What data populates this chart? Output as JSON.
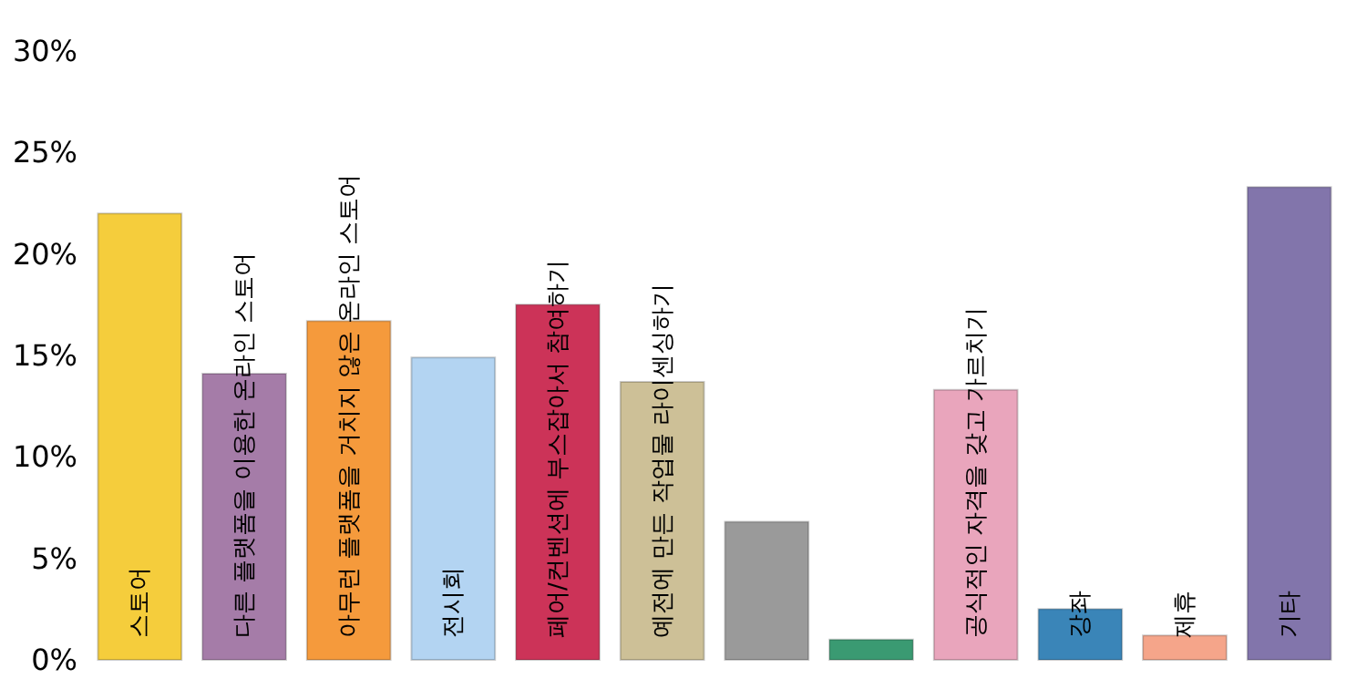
{
  "chart_data": {
    "type": "bar",
    "categories": [
      "스토어",
      "다른 플랫폼을 이용한 온라인 스토어",
      "아무런 플랫폼을 거치지 않은 온라인 스토어",
      "전시회",
      "페어/컨벤션에 부스잡아서 참여하기",
      "예전에 만든 작업물 라이센싱하기",
      null,
      null,
      "공식적인 자격을 갖고 가르치기",
      "강좌",
      "제휴",
      "기타"
    ],
    "values": [
      22.0,
      14.1,
      16.7,
      14.9,
      17.5,
      13.7,
      6.8,
      1.0,
      13.3,
      2.5,
      1.2,
      23.3
    ],
    "colors": [
      "#f5cd3c",
      "#a57ca8",
      "#f59a3c",
      "#b3d4f2",
      "#cc3358",
      "#cdc097",
      "#9a9a9a",
      "#3a9a72",
      "#e9a5bc",
      "#3a85b8",
      "#f5a58a",
      "#8275ab"
    ],
    "ylim": [
      0,
      30
    ],
    "yticks": [
      {
        "value": 0,
        "label": "0%"
      },
      {
        "value": 5,
        "label": "5%"
      },
      {
        "value": 10,
        "label": "10%"
      },
      {
        "value": 15,
        "label": "15%"
      },
      {
        "value": 20,
        "label": "20%"
      },
      {
        "value": 25,
        "label": "25%"
      },
      {
        "value": 30,
        "label": "30%"
      }
    ],
    "grid": false,
    "tick_labels": "y"
  }
}
